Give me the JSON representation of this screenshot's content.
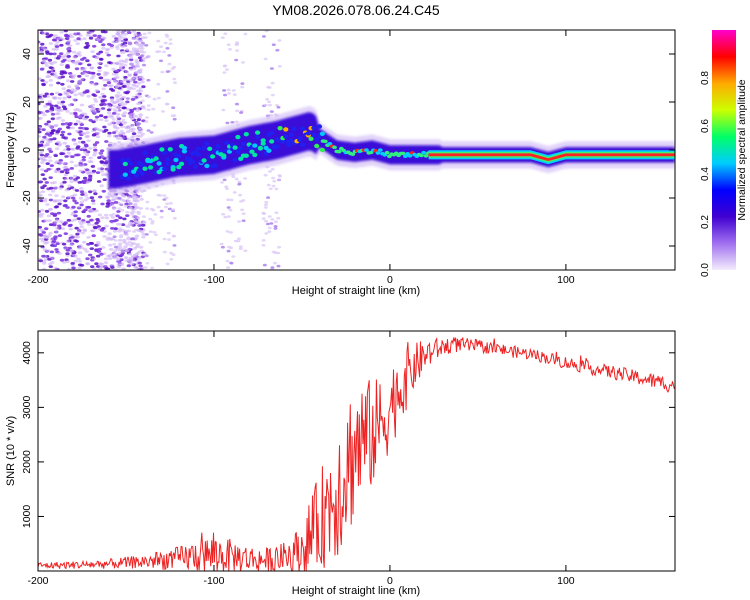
{
  "figure": {
    "title": "YM08.2026.078.06.24.C45"
  },
  "chart_data": [
    {
      "type": "heatmap",
      "title": "YM08.2026.078.06.24.C45",
      "xlabel": "Height of straight line (km)",
      "ylabel": "Frequency (Hz)",
      "xlim": [
        -200,
        162
      ],
      "ylim": [
        -50,
        50
      ],
      "xticks": [
        -200,
        -100,
        0,
        100
      ],
      "yticks": [
        -40,
        -20,
        0,
        20,
        40
      ],
      "colorbar": {
        "label": "Normalized spectral amplitude",
        "range": [
          0,
          1
        ],
        "ticks": [
          "0.0",
          "0.2",
          "0.4",
          "0.6",
          "0.8"
        ],
        "colors": [
          "#f4ecfc",
          "#a070f0",
          "#4000d0",
          "#0000ff",
          "#00ccff",
          "#00ff66",
          "#ccff00",
          "#ffaa00",
          "#ff0000",
          "#ff00cc"
        ]
      },
      "ridge": {
        "x": [
          -155,
          -140,
          -120,
          -100,
          -80,
          -65,
          -55,
          -45,
          -40,
          -30,
          -20,
          -10,
          0,
          20,
          50,
          80,
          90,
          100,
          162
        ],
        "y": [
          -8,
          -6,
          -3,
          -2,
          2,
          4,
          6,
          8,
          5,
          0,
          -1,
          0,
          -2,
          -2,
          -2,
          -2,
          -4,
          -2,
          -2
        ]
      }
    },
    {
      "type": "line",
      "xlabel": "Height of straight line (km)",
      "ylabel": "SNR (10 * v/v)",
      "xlim": [
        -200,
        162
      ],
      "ylim": [
        0,
        4400
      ],
      "xticks": [
        -200,
        -100,
        0,
        100
      ],
      "yticks": [
        1000,
        2000,
        3000,
        4000
      ],
      "series": [
        {
          "name": "SNR",
          "color": "#ee2222",
          "x": [
            -200,
            -180,
            -160,
            -140,
            -120,
            -110,
            -100,
            -90,
            -80,
            -70,
            -60,
            -50,
            -45,
            -40,
            -35,
            -30,
            -25,
            -20,
            -15,
            -10,
            -5,
            0,
            5,
            10,
            15,
            20,
            25,
            30,
            35,
            40,
            50,
            60,
            70,
            80,
            90,
            100,
            110,
            120,
            130,
            140,
            150,
            162
          ],
          "values": [
            100,
            110,
            130,
            170,
            230,
            280,
            300,
            280,
            220,
            200,
            250,
            400,
            650,
            900,
            1200,
            1500,
            1900,
            2200,
            2400,
            2500,
            2700,
            3000,
            3300,
            3600,
            3800,
            3950,
            4050,
            4100,
            4150,
            4150,
            4120,
            4080,
            4020,
            3980,
            3900,
            3820,
            3750,
            3680,
            3620,
            3550,
            3480,
            3400
          ],
          "noise": [
            60,
            70,
            90,
            130,
            220,
            300,
            380,
            300,
            250,
            230,
            280,
            450,
            700,
            900,
            1100,
            1300,
            1400,
            1300,
            1200,
            1000,
            900,
            800,
            700,
            600,
            400,
            300,
            220,
            170,
            150,
            140,
            120,
            110,
            110,
            110,
            110,
            120,
            120,
            120,
            130,
            130,
            140,
            150
          ]
        }
      ]
    }
  ]
}
